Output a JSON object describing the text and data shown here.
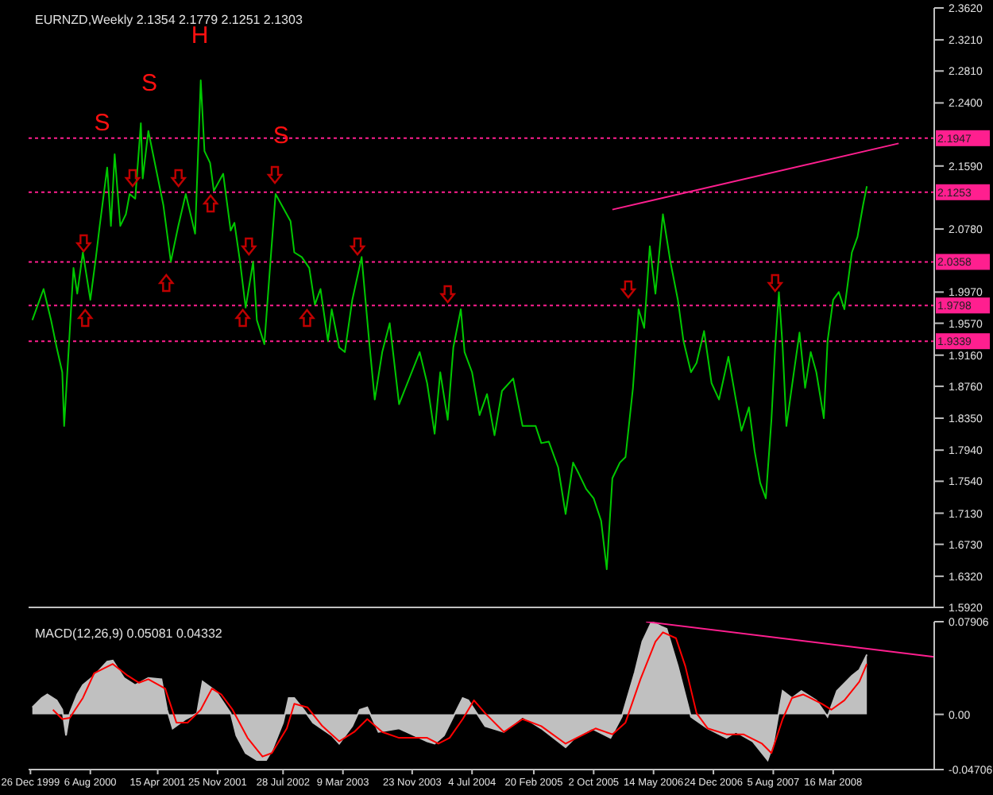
{
  "chart_data": [
    {
      "type": "line",
      "title": "EURNZD,Weekly 2.1354 2.1779 2.1251 2.1303",
      "tick_labels": "y",
      "xlim": [
        "1999-12-19",
        "2009-03-29"
      ],
      "ylim": [
        1.592,
        2.362
      ],
      "yticks": [
        {
          "value": 2.362,
          "label": "2.3620"
        },
        {
          "value": 2.321,
          "label": "2.3210"
        },
        {
          "value": 2.281,
          "label": "2.2810"
        },
        {
          "value": 2.24,
          "label": "2.2400"
        },
        {
          "value": 2.159,
          "label": "2.1590"
        },
        {
          "value": 2.078,
          "label": "2.0780"
        },
        {
          "value": 1.997,
          "label": "1.9970"
        },
        {
          "value": 1.957,
          "label": "1.9570"
        },
        {
          "value": 1.916,
          "label": "1.9160"
        },
        {
          "value": 1.876,
          "label": "1.8760"
        },
        {
          "value": 1.835,
          "label": "1.8350"
        },
        {
          "value": 1.794,
          "label": "1.7940"
        },
        {
          "value": 1.754,
          "label": "1.7540"
        },
        {
          "value": 1.713,
          "label": "1.7130"
        },
        {
          "value": 1.673,
          "label": "1.6730"
        },
        {
          "value": 1.632,
          "label": "1.6320"
        },
        {
          "value": 1.592,
          "label": "1.5920"
        }
      ],
      "ref_lines": [
        {
          "axis": "y",
          "value": 2.1947,
          "label": "2.1947",
          "color": "#ff1f8f",
          "line_style": "dotted"
        },
        {
          "axis": "y",
          "value": 2.1253,
          "label": "2.1253",
          "color": "#ff1f8f",
          "line_style": "dotted"
        },
        {
          "axis": "y",
          "value": 2.0358,
          "label": "2.0358",
          "color": "#ff1f8f",
          "line_style": "dotted"
        },
        {
          "axis": "y",
          "value": 1.9798,
          "label": "1.9798",
          "color": "#ff1f8f",
          "line_style": "dotted"
        },
        {
          "axis": "y",
          "value": 1.9339,
          "label": "1.9339",
          "color": "#ff1f8f",
          "line_style": "dotted"
        }
      ],
      "annotations": [
        "S",
        "S",
        "H",
        "S"
      ],
      "series": [
        {
          "color": "#00c800",
          "x": [
            "2000-01-02",
            "2000-02-13",
            "2000-03-12",
            "2000-04-02",
            "2000-04-23",
            "2000-04-30",
            "2000-05-21",
            "2000-06-04",
            "2000-06-18",
            "2000-07-09",
            "2000-08-06",
            "2000-08-27",
            "2000-09-10",
            "2000-10-08",
            "2000-10-22",
            "2000-11-05",
            "2000-11-26",
            "2000-12-17",
            "2000-12-31",
            "2001-01-21",
            "2001-02-11",
            "2001-02-18",
            "2001-03-11",
            "2001-05-06",
            "2001-06-03",
            "2001-07-01",
            "2001-07-29",
            "2001-09-02",
            "2001-09-23",
            "2001-10-07",
            "2001-10-28",
            "2001-11-11",
            "2001-12-16",
            "2002-01-13",
            "2002-01-27",
            "2002-02-17",
            "2002-03-10",
            "2002-04-07",
            "2002-04-21",
            "2002-05-19",
            "2002-06-09",
            "2002-06-30",
            "2002-08-25",
            "2002-09-08",
            "2002-10-06",
            "2002-11-03",
            "2002-11-24",
            "2002-12-15",
            "2003-01-12",
            "2003-01-26",
            "2003-02-23",
            "2003-03-16",
            "2003-04-13",
            "2003-05-18",
            "2003-06-15",
            "2003-07-06",
            "2003-08-03",
            "2003-08-31",
            "2003-10-05",
            "2003-12-21",
            "2004-01-18",
            "2004-02-15",
            "2004-03-07",
            "2004-04-04",
            "2004-04-25",
            "2004-05-23",
            "2004-06-06",
            "2004-07-04",
            "2004-08-01",
            "2004-08-29",
            "2004-09-26",
            "2004-10-24",
            "2004-12-05",
            "2005-01-09",
            "2005-02-27",
            "2005-03-20",
            "2005-04-17",
            "2005-05-22",
            "2005-06-19",
            "2005-07-17",
            "2005-08-07",
            "2005-09-04",
            "2005-10-02",
            "2005-10-30",
            "2005-11-20",
            "2005-12-11",
            "2006-01-08",
            "2006-01-29",
            "2006-02-26",
            "2006-03-19",
            "2006-04-09",
            "2006-04-30",
            "2006-05-21",
            "2006-06-18",
            "2006-07-16",
            "2006-08-13",
            "2006-09-03",
            "2006-10-01",
            "2006-10-22",
            "2006-11-19",
            "2006-12-17",
            "2007-01-14",
            "2007-02-18",
            "2007-03-18",
            "2007-04-08",
            "2007-05-06",
            "2007-05-27",
            "2007-06-17",
            "2007-07-08",
            "2007-07-29",
            "2007-08-12",
            "2007-08-26",
            "2007-09-09",
            "2007-09-23",
            "2007-10-21",
            "2007-11-11",
            "2007-12-02",
            "2007-12-23",
            "2008-01-13",
            "2008-02-10",
            "2008-02-24",
            "2008-03-16",
            "2008-04-06",
            "2008-04-27",
            "2008-05-25",
            "2008-06-15",
            "2008-07-06",
            "2008-07-20"
          ],
          "values": [
            1.961,
            2.001,
            1.961,
            1.926,
            1.894,
            1.825,
            1.947,
            2.028,
            1.995,
            2.048,
            1.987,
            2.042,
            2.082,
            2.157,
            2.082,
            2.174,
            2.082,
            2.097,
            2.123,
            2.117,
            2.214,
            2.143,
            2.204,
            2.109,
            2.036,
            2.082,
            2.123,
            2.072,
            2.269,
            2.178,
            2.163,
            2.127,
            2.149,
            2.076,
            2.086,
            2.036,
            1.977,
            2.036,
            1.961,
            1.93,
            2.028,
            2.123,
            2.088,
            2.048,
            2.042,
            2.028,
            1.981,
            2.001,
            1.934,
            1.975,
            1.926,
            1.92,
            1.987,
            2.042,
            1.934,
            1.859,
            1.92,
            1.957,
            1.853,
            1.92,
            1.88,
            1.815,
            1.894,
            1.833,
            1.926,
            1.975,
            1.92,
            1.894,
            1.839,
            1.866,
            1.813,
            1.87,
            1.886,
            1.825,
            1.825,
            1.803,
            1.805,
            1.772,
            1.712,
            1.778,
            1.764,
            1.744,
            1.732,
            1.703,
            1.641,
            1.758,
            1.778,
            1.785,
            1.874,
            1.975,
            1.951,
            2.056,
            1.995,
            2.097,
            2.036,
            1.987,
            1.934,
            1.894,
            1.906,
            1.947,
            1.88,
            1.859,
            1.914,
            1.859,
            1.819,
            1.849,
            1.793,
            1.752,
            1.732,
            1.833,
            1.926,
            1.997,
            1.926,
            1.825,
            1.894,
            1.945,
            1.874,
            1.92,
            1.894,
            1.835,
            1.934,
            1.987,
            1.997,
            1.975,
            2.048,
            2.068,
            2.109,
            2.133
          ]
        },
        {
          "color": "#ff1f8f",
          "x": [
            "2005-12-11",
            "2008-11-16"
          ],
          "values": [
            2.103,
            2.188
          ]
        }
      ]
    },
    {
      "type": "line",
      "title": "MACD(12,26,9) 0.05081 0.04332",
      "xlim": [
        "1999-12-19",
        "2009-03-29"
      ],
      "xticks": [
        {
          "value": "1999-12-26",
          "label": "26 Dec 1999"
        },
        {
          "value": "2000-08-06",
          "label": "6 Aug 2000"
        },
        {
          "value": "2001-04-15",
          "label": "15 Apr 2001"
        },
        {
          "value": "2001-11-25",
          "label": "25 Nov 2001"
        },
        {
          "value": "2002-07-28",
          "label": "28 Jul 2002"
        },
        {
          "value": "2003-03-09",
          "label": "9 Mar 2003"
        },
        {
          "value": "2003-11-23",
          "label": "23 Nov 2003"
        },
        {
          "value": "2004-07-04",
          "label": "4 Jul 2004"
        },
        {
          "value": "2005-02-20",
          "label": "20 Feb 2005"
        },
        {
          "value": "2005-10-02",
          "label": "2 Oct 2005"
        },
        {
          "value": "2006-05-14",
          "label": "14 May 2006"
        },
        {
          "value": "2006-12-24",
          "label": "24 Dec 2006"
        },
        {
          "value": "2007-08-05",
          "label": "5 Aug 2007"
        },
        {
          "value": "2008-03-16",
          "label": "16 Mar 2008"
        }
      ],
      "ylim": [
        -0.04706,
        0.07906
      ],
      "yticks": [
        {
          "value": 0.07906,
          "label": "0.07906"
        },
        {
          "value": 0,
          "label": "0.00"
        },
        {
          "value": -0.04706,
          "label": "-0.04706"
        }
      ],
      "series": [
        {
          "type": "area",
          "color": "#c0c0c0",
          "x": [
            "2000-01-02",
            "2000-02-06",
            "2000-02-27",
            "2000-04-02",
            "2000-04-23",
            "2000-05-07",
            "2000-05-21",
            "2000-06-18",
            "2000-07-09",
            "2000-08-20",
            "2000-10-08",
            "2000-10-29",
            "2000-12-10",
            "2001-01-21",
            "2001-03-11",
            "2001-04-29",
            "2001-05-20",
            "2001-06-10",
            "2001-07-29",
            "2001-09-09",
            "2001-09-30",
            "2001-11-18",
            "2002-01-13",
            "2002-02-03",
            "2002-03-10",
            "2002-04-21",
            "2002-05-26",
            "2002-06-16",
            "2002-07-28",
            "2002-08-18",
            "2002-09-08",
            "2002-10-13",
            "2002-11-17",
            "2003-01-26",
            "2003-02-23",
            "2003-04-13",
            "2003-05-11",
            "2003-06-08",
            "2003-07-20",
            "2003-10-05",
            "2004-01-18",
            "2004-02-15",
            "2004-03-21",
            "2004-04-25",
            "2004-05-30",
            "2004-06-20",
            "2004-08-22",
            "2004-10-31",
            "2005-01-09",
            "2005-03-20",
            "2005-06-19",
            "2005-07-24",
            "2005-09-25",
            "2005-12-04",
            "2006-01-15",
            "2006-03-05",
            "2006-04-02",
            "2006-05-07",
            "2006-06-11",
            "2006-07-02",
            "2006-08-13",
            "2006-10-01",
            "2006-12-03",
            "2007-02-11",
            "2007-03-18",
            "2007-05-20",
            "2007-07-15",
            "2007-08-05",
            "2007-09-09",
            "2007-10-14",
            "2007-11-18",
            "2008-01-13",
            "2008-02-24",
            "2008-03-30",
            "2008-05-25",
            "2008-06-22",
            "2008-07-20"
          ],
          "values": [
            0.006,
            0.014,
            0.017,
            0.012,
            0.004,
            -0.018,
            0.001,
            0.017,
            0.025,
            0.033,
            0.045,
            0.046,
            0.031,
            0.025,
            0.031,
            0.03,
            0.004,
            -0.012,
            -0.004,
            0.001,
            0.028,
            0.02,
            0.001,
            -0.018,
            -0.033,
            -0.039,
            -0.039,
            -0.031,
            -0.007,
            0.014,
            0.014,
            0.004,
            -0.007,
            -0.018,
            -0.025,
            -0.01,
            0.004,
            0.006,
            -0.015,
            -0.012,
            -0.023,
            -0.025,
            -0.018,
            -0.002,
            0.014,
            0.012,
            -0.01,
            -0.015,
            -0.002,
            -0.012,
            -0.028,
            -0.02,
            -0.012,
            -0.02,
            -0.002,
            0.036,
            0.062,
            0.079,
            0.075,
            0.073,
            0.041,
            -0.002,
            -0.012,
            -0.02,
            -0.015,
            -0.023,
            -0.039,
            -0.025,
            0.02,
            0.014,
            0.02,
            0.012,
            -0.002,
            0.02,
            0.033,
            0.038,
            0.051
          ]
        },
        {
          "color": "#ff0000",
          "x": [
            "2000-03-19",
            "2000-04-23",
            "2000-05-21",
            "2000-07-09",
            "2000-08-20",
            "2000-10-29",
            "2000-12-24",
            "2001-02-04",
            "2001-03-11",
            "2001-05-13",
            "2001-06-24",
            "2001-08-05",
            "2001-09-23",
            "2001-11-04",
            "2001-12-09",
            "2002-01-20",
            "2002-03-17",
            "2002-05-12",
            "2002-06-16",
            "2002-08-11",
            "2002-09-08",
            "2002-10-27",
            "2002-12-22",
            "2003-02-23",
            "2003-04-20",
            "2003-06-08",
            "2003-08-03",
            "2003-10-05",
            "2004-01-18",
            "2004-02-29",
            "2004-04-11",
            "2004-05-30",
            "2004-07-11",
            "2004-08-22",
            "2004-10-31",
            "2005-01-09",
            "2005-03-20",
            "2005-06-19",
            "2005-07-31",
            "2005-10-09",
            "2005-12-11",
            "2006-01-29",
            "2006-03-26",
            "2006-05-21",
            "2006-06-18",
            "2006-08-06",
            "2006-09-10",
            "2006-10-22",
            "2006-12-03",
            "2007-02-11",
            "2007-04-15",
            "2007-06-24",
            "2007-07-29",
            "2007-09-09",
            "2007-10-14",
            "2007-11-25",
            "2008-02-03",
            "2008-03-09",
            "2008-04-27",
            "2008-06-22",
            "2008-07-20"
          ],
          "values": [
            0.004,
            -0.004,
            -0.003,
            0.014,
            0.035,
            0.043,
            0.033,
            0.027,
            0.03,
            0.022,
            -0.007,
            -0.007,
            0.004,
            0.022,
            0.017,
            0.004,
            -0.02,
            -0.036,
            -0.033,
            -0.012,
            0.009,
            0.006,
            -0.01,
            -0.023,
            -0.015,
            -0.004,
            -0.015,
            -0.02,
            -0.02,
            -0.025,
            -0.02,
            -0.004,
            0.012,
            0.001,
            -0.015,
            -0.004,
            -0.01,
            -0.025,
            -0.02,
            -0.012,
            -0.017,
            -0.007,
            0.03,
            0.062,
            0.07,
            0.065,
            0.041,
            0.001,
            -0.012,
            -0.017,
            -0.017,
            -0.025,
            -0.033,
            -0.004,
            0.014,
            0.017,
            0.009,
            0.004,
            0.012,
            0.028,
            0.043
          ]
        },
        {
          "color": "#ff1f8f",
          "x": [
            "2006-04-16",
            "2009-03-29"
          ],
          "values": [
            0.079,
            0.049
          ]
        }
      ]
    }
  ]
}
